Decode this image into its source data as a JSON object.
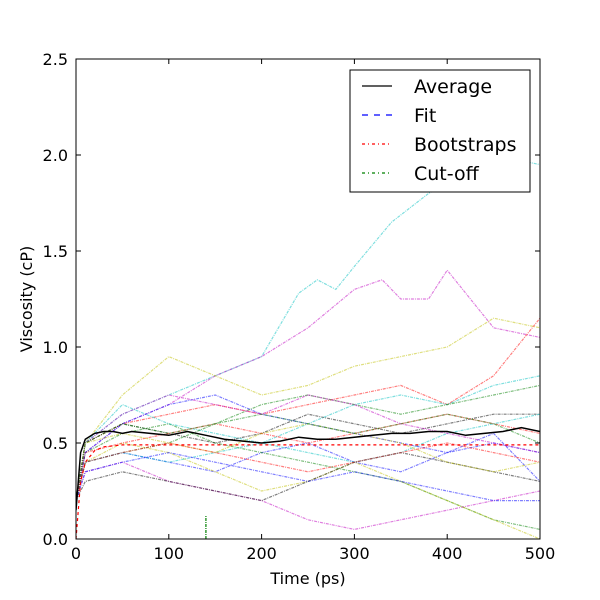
{
  "chart_data": {
    "type": "line",
    "xlabel": "Time (ps)",
    "ylabel": "Viscosity (cP)",
    "xlim": [
      0,
      500
    ],
    "ylim": [
      0,
      2.5
    ],
    "x_ticks": [
      0,
      100,
      200,
      300,
      400,
      500
    ],
    "y_ticks": [
      0.0,
      0.5,
      1.0,
      1.5,
      2.0,
      2.5
    ],
    "x_tick_labels": [
      "0",
      "100",
      "200",
      "300",
      "400",
      "500"
    ],
    "y_tick_labels": [
      "0.0",
      "0.5",
      "1.0",
      "1.5",
      "2.0",
      "2.5"
    ],
    "grid": false,
    "legend_position": "top-right",
    "legend": [
      {
        "label": "Average",
        "color": "#000000",
        "style": "solid"
      },
      {
        "label": "Fit",
        "color": "#0000ff",
        "style": "dashed"
      },
      {
        "label": "Bootstraps",
        "color": "#ff0000",
        "style": "dashdot"
      },
      {
        "label": "Cut-off",
        "color": "#008000",
        "style": "dashdot"
      }
    ],
    "average": {
      "x": [
        0,
        5,
        10,
        20,
        30,
        40,
        50,
        60,
        80,
        100,
        120,
        140,
        160,
        180,
        200,
        220,
        240,
        260,
        280,
        300,
        320,
        340,
        360,
        380,
        400,
        420,
        440,
        460,
        480,
        500
      ],
      "y": [
        0.15,
        0.45,
        0.52,
        0.55,
        0.56,
        0.56,
        0.55,
        0.56,
        0.55,
        0.54,
        0.56,
        0.54,
        0.52,
        0.51,
        0.5,
        0.51,
        0.53,
        0.52,
        0.52,
        0.53,
        0.54,
        0.55,
        0.55,
        0.56,
        0.56,
        0.54,
        0.55,
        0.56,
        0.58,
        0.56
      ]
    },
    "fit": {
      "x": [
        0,
        5,
        10,
        20,
        30,
        50,
        100,
        200,
        300,
        400,
        500
      ],
      "y": [
        0.0,
        0.3,
        0.4,
        0.46,
        0.48,
        0.49,
        0.49,
        0.49,
        0.49,
        0.49,
        0.49
      ]
    },
    "cutoff": {
      "x": 140,
      "y_range": [
        0,
        0.12
      ]
    },
    "bootstraps": [
      {
        "color": "#00bfbf",
        "x": [
          0,
          10,
          50,
          100,
          150,
          200,
          240,
          260,
          280,
          300,
          340,
          380,
          400,
          450,
          500
        ],
        "y": [
          0.2,
          0.5,
          0.65,
          0.75,
          0.85,
          0.95,
          1.28,
          1.35,
          1.3,
          1.42,
          1.65,
          1.8,
          1.85,
          2.0,
          1.95
        ]
      },
      {
        "color": "#bf00bf",
        "x": [
          0,
          10,
          50,
          100,
          150,
          200,
          250,
          300,
          330,
          350,
          380,
          400,
          450,
          500
        ],
        "y": [
          0.2,
          0.45,
          0.6,
          0.7,
          0.85,
          0.95,
          1.1,
          1.3,
          1.35,
          1.25,
          1.25,
          1.4,
          1.1,
          1.05
        ]
      },
      {
        "color": "#bfbf00",
        "x": [
          0,
          10,
          50,
          100,
          150,
          200,
          250,
          300,
          350,
          400,
          450,
          500
        ],
        "y": [
          0.2,
          0.5,
          0.75,
          0.95,
          0.85,
          0.75,
          0.8,
          0.9,
          0.95,
          1.0,
          1.15,
          1.1
        ]
      },
      {
        "color": "#ff0000",
        "x": [
          0,
          10,
          50,
          100,
          150,
          200,
          250,
          300,
          350,
          400,
          450,
          500
        ],
        "y": [
          0.2,
          0.5,
          0.6,
          0.65,
          0.7,
          0.65,
          0.7,
          0.75,
          0.8,
          0.7,
          0.85,
          1.15
        ]
      },
      {
        "color": "#0000ff",
        "x": [
          0,
          10,
          50,
          100,
          150,
          200,
          250,
          300,
          350,
          400,
          450,
          500
        ],
        "y": [
          0.2,
          0.4,
          0.45,
          0.4,
          0.35,
          0.45,
          0.5,
          0.4,
          0.35,
          0.45,
          0.55,
          0.3
        ]
      },
      {
        "color": "#008000",
        "x": [
          0,
          10,
          50,
          100,
          150,
          200,
          250,
          300,
          350,
          400,
          450,
          500
        ],
        "y": [
          0.2,
          0.45,
          0.55,
          0.6,
          0.5,
          0.45,
          0.4,
          0.35,
          0.3,
          0.2,
          0.1,
          0.05
        ]
      },
      {
        "color": "#000000",
        "x": [
          0,
          10,
          50,
          100,
          150,
          200,
          250,
          300,
          350,
          400,
          450,
          500
        ],
        "y": [
          0.2,
          0.5,
          0.6,
          0.55,
          0.5,
          0.55,
          0.65,
          0.6,
          0.55,
          0.6,
          0.65,
          0.65
        ]
      },
      {
        "color": "#00bfbf",
        "x": [
          0,
          10,
          50,
          100,
          150,
          200,
          250,
          300,
          350,
          400,
          450,
          500
        ],
        "y": [
          0.2,
          0.5,
          0.7,
          0.6,
          0.55,
          0.5,
          0.6,
          0.7,
          0.75,
          0.7,
          0.8,
          0.85
        ]
      },
      {
        "color": "#bf00bf",
        "x": [
          0,
          10,
          50,
          100,
          150,
          200,
          250,
          300,
          350,
          400,
          450,
          500
        ],
        "y": [
          0.2,
          0.35,
          0.4,
          0.3,
          0.25,
          0.2,
          0.1,
          0.05,
          0.1,
          0.15,
          0.2,
          0.25
        ]
      },
      {
        "color": "#bfbf00",
        "x": [
          0,
          10,
          50,
          100,
          150,
          200,
          250,
          300,
          350,
          400,
          450,
          500
        ],
        "y": [
          0.2,
          0.4,
          0.5,
          0.45,
          0.35,
          0.25,
          0.3,
          0.4,
          0.3,
          0.2,
          0.1,
          0.0
        ]
      },
      {
        "color": "#ff0000",
        "x": [
          0,
          10,
          50,
          100,
          150,
          200,
          250,
          300,
          350,
          400,
          450,
          500
        ],
        "y": [
          0.2,
          0.45,
          0.5,
          0.55,
          0.6,
          0.55,
          0.5,
          0.55,
          0.6,
          0.65,
          0.6,
          0.55
        ]
      },
      {
        "color": "#0000ff",
        "x": [
          0,
          10,
          50,
          100,
          150,
          200,
          250,
          300,
          350,
          400,
          450,
          500
        ],
        "y": [
          0.2,
          0.45,
          0.6,
          0.7,
          0.75,
          0.65,
          0.6,
          0.55,
          0.5,
          0.45,
          0.5,
          0.45
        ]
      },
      {
        "color": "#008000",
        "x": [
          0,
          10,
          50,
          100,
          150,
          200,
          250,
          300,
          350,
          400,
          450,
          500
        ],
        "y": [
          0.2,
          0.4,
          0.45,
          0.5,
          0.6,
          0.7,
          0.75,
          0.7,
          0.65,
          0.7,
          0.75,
          0.8
        ]
      },
      {
        "color": "#000000",
        "x": [
          0,
          10,
          50,
          100,
          150,
          200,
          250,
          300,
          350,
          400,
          450,
          500
        ],
        "y": [
          0.2,
          0.3,
          0.35,
          0.3,
          0.25,
          0.2,
          0.3,
          0.4,
          0.45,
          0.4,
          0.35,
          0.3
        ]
      },
      {
        "color": "#00bfbf",
        "x": [
          0,
          10,
          50,
          100,
          150,
          200,
          250,
          300,
          350,
          400,
          450,
          500
        ],
        "y": [
          0.2,
          0.4,
          0.45,
          0.4,
          0.45,
          0.5,
          0.45,
          0.4,
          0.45,
          0.55,
          0.6,
          0.65
        ]
      },
      {
        "color": "#bf00bf",
        "x": [
          0,
          10,
          50,
          100,
          150,
          200,
          250,
          300,
          350,
          400,
          450,
          500
        ],
        "y": [
          0.2,
          0.5,
          0.65,
          0.75,
          0.7,
          0.65,
          0.75,
          0.7,
          0.6,
          0.55,
          0.5,
          0.45
        ]
      },
      {
        "color": "#bfbf00",
        "x": [
          0,
          10,
          50,
          100,
          150,
          200,
          250,
          300,
          350,
          400,
          450,
          500
        ],
        "y": [
          0.2,
          0.5,
          0.55,
          0.5,
          0.45,
          0.55,
          0.6,
          0.55,
          0.5,
          0.4,
          0.35,
          0.4
        ]
      },
      {
        "color": "#ff0000",
        "x": [
          0,
          10,
          50,
          100,
          150,
          200,
          250,
          300,
          350,
          400,
          450,
          500
        ],
        "y": [
          0.2,
          0.4,
          0.45,
          0.5,
          0.45,
          0.4,
          0.35,
          0.4,
          0.45,
          0.5,
          0.45,
          0.4
        ]
      },
      {
        "color": "#0000ff",
        "x": [
          0,
          10,
          50,
          100,
          150,
          200,
          250,
          300,
          350,
          400,
          450,
          500
        ],
        "y": [
          0.2,
          0.35,
          0.4,
          0.45,
          0.4,
          0.35,
          0.3,
          0.35,
          0.3,
          0.25,
          0.2,
          0.2
        ]
      },
      {
        "color": "#008000",
        "x": [
          0,
          10,
          50,
          100,
          150,
          200,
          250,
          300,
          350,
          400,
          450,
          500
        ],
        "y": [
          0.2,
          0.5,
          0.6,
          0.55,
          0.6,
          0.65,
          0.6,
          0.55,
          0.6,
          0.65,
          0.6,
          0.5
        ]
      }
    ]
  }
}
